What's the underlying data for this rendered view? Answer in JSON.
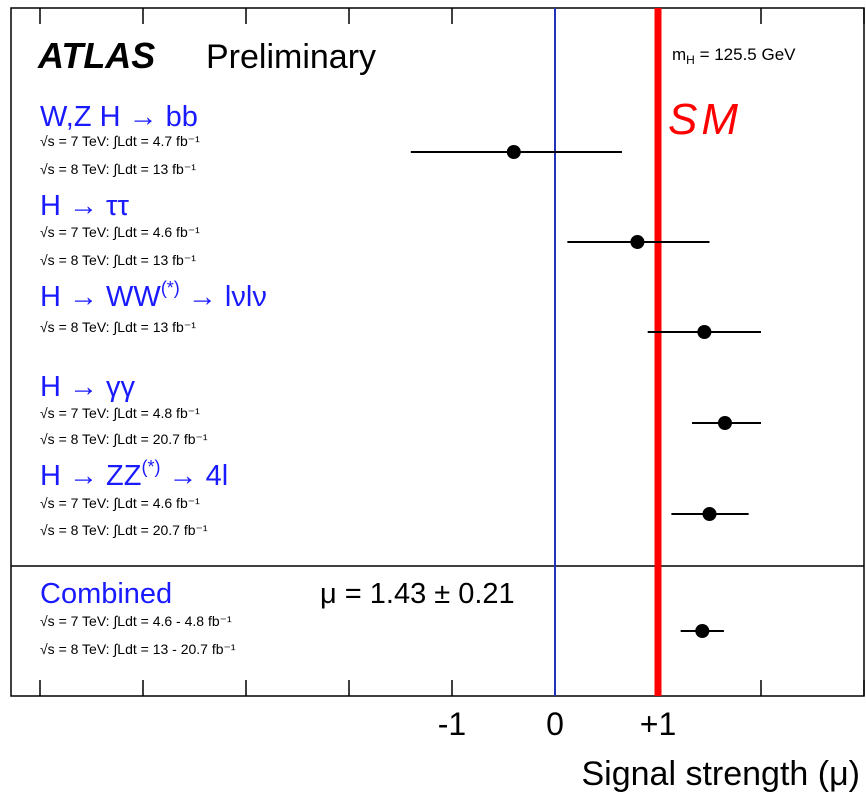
{
  "header": {
    "experiment": "ATLAS",
    "status": "Preliminary",
    "mass_label": "m",
    "mass_sub": "H",
    "mass_value": " = 125.5 GeV"
  },
  "annotation": {
    "sm_label": "SM",
    "sm_color": "#ff0000"
  },
  "combined_result": "μ = 1.43 ± 0.21",
  "colors": {
    "channel_text": "#1a1aff",
    "zero_line": "#2233bb",
    "points": "#000000"
  },
  "chart_data": {
    "type": "scatter",
    "xlabel": "Signal strength (μ)",
    "xlim": [
      -5.0,
      3.0
    ],
    "x_ticks": [
      {
        "value": -1,
        "label": "-1"
      },
      {
        "value": 0,
        "label": "0"
      },
      {
        "value": 1,
        "label": "+1"
      }
    ],
    "x_minor_ticks": [
      -5,
      -4,
      -3,
      -2,
      -1,
      0,
      1,
      2,
      3
    ],
    "reference_lines": [
      {
        "x": 0,
        "name": "zero-line"
      },
      {
        "x": 1,
        "name": "sm-line",
        "label": "SM"
      }
    ],
    "channels": [
      {
        "name": "W,Z H → bb",
        "mu": -0.4,
        "low": -1.4,
        "high": 0.65,
        "lumi": [
          "√s = 7 TeV: ∫Ldt = 4.7 fb⁻¹",
          "√s = 8 TeV: ∫Ldt = 13 fb⁻¹"
        ]
      },
      {
        "name": "H → ττ",
        "mu": 0.8,
        "low": 0.12,
        "high": 1.5,
        "lumi": [
          "√s = 7 TeV: ∫Ldt = 4.6 fb⁻¹",
          "√s = 8 TeV: ∫Ldt = 13 fb⁻¹"
        ]
      },
      {
        "name": "H → WW(*) → lνlν",
        "mu": 1.45,
        "low": 0.9,
        "high": 2.0,
        "lumi": [
          "√s = 8 TeV: ∫Ldt = 13 fb⁻¹"
        ]
      },
      {
        "name": "H → γγ",
        "mu": 1.65,
        "low": 1.33,
        "high": 2.0,
        "lumi": [
          "√s = 7 TeV: ∫Ldt = 4.8 fb⁻¹",
          "√s = 8 TeV: ∫Ldt = 20.7 fb⁻¹"
        ]
      },
      {
        "name": "H → ZZ(*) → 4l",
        "mu": 1.5,
        "low": 1.13,
        "high": 1.88,
        "lumi": [
          "√s = 7 TeV: ∫Ldt = 4.6 fb⁻¹",
          "√s = 8 TeV: ∫Ldt = 20.7 fb⁻¹"
        ]
      },
      {
        "name": "Combined",
        "mu": 1.43,
        "low": 1.22,
        "high": 1.64,
        "lumi": [
          "√s = 7 TeV: ∫Ldt = 4.6 - 4.8 fb⁻¹",
          "√s = 8 TeV: ∫Ldt = 13 - 20.7 fb⁻¹"
        ]
      }
    ]
  }
}
